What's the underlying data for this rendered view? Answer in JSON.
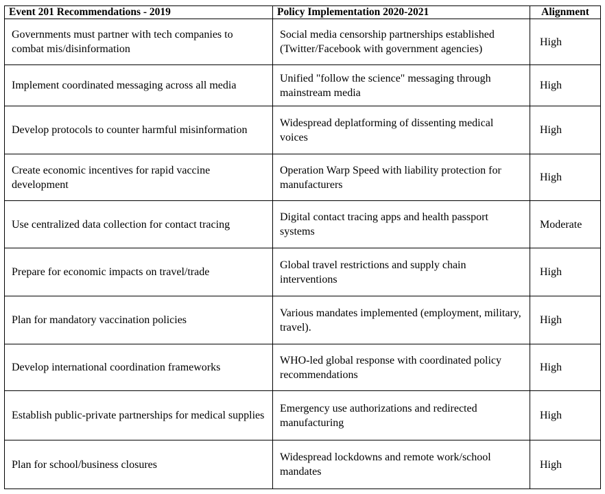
{
  "table": {
    "header": [
      "Event 201 Recommendations - 2019",
      "Policy Implementation 2020-2021",
      "Alignment"
    ],
    "rows": [
      [
        "Governments must partner with tech companies to combat mis/disinformation",
        "Social media censorship partnerships established (Twitter/Facebook with government agencies)",
        "High"
      ],
      [
        "Implement coordinated messaging across all media",
        "Unified \"follow the science\" messaging through mainstream media",
        "High"
      ],
      [
        "Develop protocols to counter harmful misinformation",
        "Widespread deplatforming of dissenting medical voices",
        "High"
      ],
      [
        "Create economic incentives for rapid vaccine development",
        "Operation Warp Speed with liability protection for manufacturers",
        "High"
      ],
      [
        "Use centralized data collection for contact tracing",
        "Digital contact tracing apps and health passport systems",
        "Moderate"
      ],
      [
        "Prepare for economic impacts on travel/trade",
        "Global travel restrictions and supply chain interventions",
        "High"
      ],
      [
        "Plan for mandatory vaccination policies",
        "Various mandates implemented (employment, military, travel).",
        "High"
      ],
      [
        "Develop international coordination frameworks",
        "WHO-led global response with coordinated policy recommendations",
        "High"
      ],
      [
        "Establish public-private partnerships for medical supplies",
        "Emergency use authorizations and redirected manufacturing",
        "High"
      ],
      [
        "Plan for school/business closures",
        "Widespread lockdowns and remote work/school mandates",
        "High"
      ]
    ]
  }
}
